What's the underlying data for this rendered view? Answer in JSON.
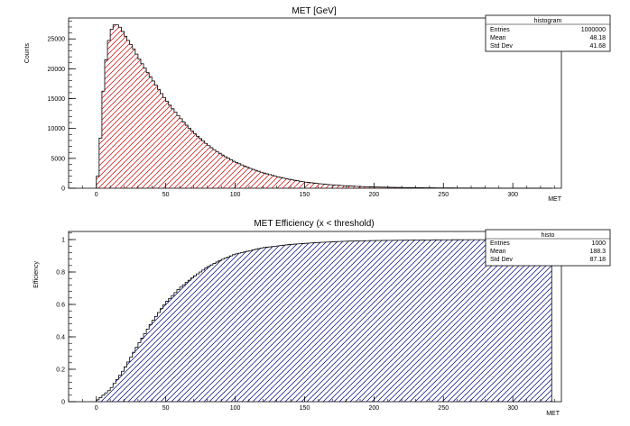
{
  "chart_data": [
    {
      "type": "bar",
      "title": "MET [GeV]",
      "xlabel": "MET",
      "ylabel": "Counts",
      "xlim": [
        -20,
        335
      ],
      "ylim": [
        0,
        28500
      ],
      "xticks": [
        "0",
        "50",
        "100",
        "150",
        "200",
        "250",
        "300"
      ],
      "xtick_values": [
        0,
        50,
        100,
        150,
        200,
        250,
        300
      ],
      "yticks": [
        "0",
        "5000",
        "10000",
        "15000",
        "20000",
        "25000"
      ],
      "ytick_values": [
        0,
        5000,
        10000,
        15000,
        20000,
        25000
      ],
      "bin_width": 2,
      "fill_color": "#cc0000",
      "hatch": "diagonal-forward",
      "x": [
        0,
        2,
        4,
        6,
        8,
        10,
        12,
        14,
        16,
        18,
        20,
        22,
        24,
        26,
        28,
        30,
        32,
        34,
        36,
        38,
        40,
        44,
        48,
        52,
        56,
        60,
        64,
        68,
        72,
        76,
        80,
        84,
        88,
        92,
        96,
        100,
        110,
        120,
        130,
        140,
        150,
        160,
        170,
        180,
        190,
        200,
        220,
        240,
        260,
        280,
        300,
        320
      ],
      "values": [
        300,
        3800,
        13000,
        19500,
        23500,
        26000,
        27200,
        27500,
        27200,
        26700,
        25800,
        25100,
        24400,
        23700,
        22900,
        22000,
        21200,
        20500,
        19700,
        19000,
        18300,
        16900,
        15500,
        14200,
        13000,
        11900,
        10800,
        9800,
        8900,
        8100,
        7300,
        6600,
        6000,
        5400,
        4900,
        4400,
        3400,
        2600,
        1950,
        1450,
        1050,
        780,
        560,
        400,
        290,
        210,
        120,
        70,
        40,
        25,
        15,
        8
      ],
      "legend": {
        "title": "histogram",
        "rows": [
          {
            "label": "Entries",
            "value": "1000000"
          },
          {
            "label": "Mean",
            "value": "48.18"
          },
          {
            "label": "Std Dev",
            "value": "41.68"
          }
        ]
      }
    },
    {
      "type": "bar",
      "title": "MET Efficiency (x < threshold)",
      "xlabel": "MET",
      "ylabel": "Efficiency",
      "xlim": [
        -20,
        335
      ],
      "ylim": [
        0,
        1.05
      ],
      "xticks": [
        "0",
        "50",
        "100",
        "150",
        "200",
        "250",
        "300"
      ],
      "xtick_values": [
        0,
        50,
        100,
        150,
        200,
        250,
        300
      ],
      "yticks": [
        "0",
        "0.2",
        "0.4",
        "0.6",
        "0.8",
        "1"
      ],
      "ytick_values": [
        0,
        0.2,
        0.4,
        0.6,
        0.8,
        1.0
      ],
      "bin_width": 2,
      "fill_color": "#000080",
      "hatch": "diagonal-forward",
      "x": [
        0,
        10,
        20,
        30,
        40,
        50,
        60,
        70,
        80,
        90,
        100,
        120,
        140,
        160,
        180,
        200,
        220,
        240,
        260,
        280,
        300,
        320
      ],
      "values": [
        0.005,
        0.075,
        0.2,
        0.35,
        0.49,
        0.61,
        0.7,
        0.77,
        0.83,
        0.875,
        0.91,
        0.95,
        0.97,
        0.982,
        0.99,
        0.994,
        0.996,
        0.998,
        0.999,
        0.9995,
        1.0,
        1.0
      ],
      "legend": {
        "title": "histo",
        "rows": [
          {
            "label": "Entries",
            "value": "1000"
          },
          {
            "label": "Mean",
            "value": "188.3"
          },
          {
            "label": "Std Dev",
            "value": "87.18"
          }
        ]
      }
    }
  ]
}
